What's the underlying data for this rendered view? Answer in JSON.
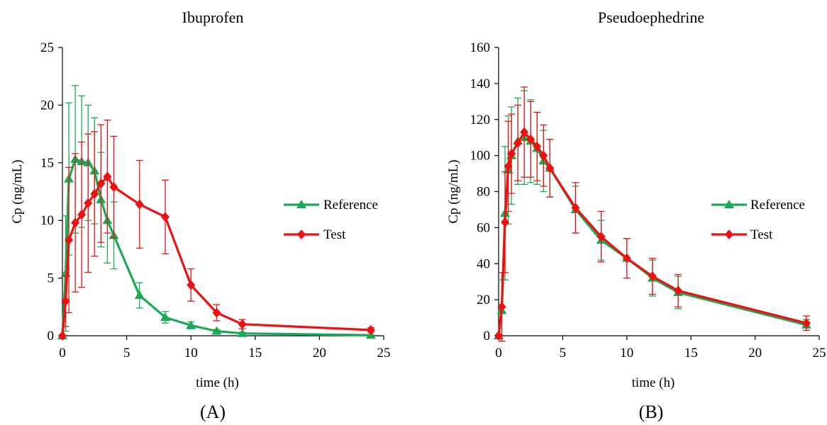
{
  "colors": {
    "reference": "#1aaa55",
    "test": "#ee1111",
    "axis": "#000000"
  },
  "chart_data": [
    {
      "type": "line",
      "title": "Ibuprofen",
      "xlabel": "time (h)",
      "ylabel": "Cp (ng/mL)",
      "panel_label": "(A)",
      "xlim": [
        0,
        25
      ],
      "ylim": [
        0,
        25
      ],
      "xticks": [
        0,
        5,
        10,
        15,
        20,
        25
      ],
      "yticks": [
        0,
        5,
        10,
        15,
        20,
        25
      ],
      "grid": false,
      "legend": "right",
      "series": [
        {
          "name": "Reference",
          "marker": "triangle",
          "color": "#1aaa55",
          "x": [
            0,
            0.25,
            0.5,
            1,
            1.5,
            2,
            2.5,
            3,
            3.5,
            4,
            6,
            8,
            10,
            12,
            14,
            24
          ],
          "y": [
            0,
            5.4,
            13.6,
            15.3,
            15.1,
            15.0,
            14.3,
            11.8,
            10.0,
            8.7,
            3.5,
            1.6,
            0.9,
            0.4,
            0.2,
            0.05
          ],
          "err": [
            0,
            5.0,
            6.6,
            6.4,
            5.7,
            5.0,
            4.6,
            4.1,
            3.7,
            2.9,
            1.1,
            0.5,
            0.3,
            0.15,
            0.1,
            0.02
          ]
        },
        {
          "name": "Test",
          "marker": "diamond",
          "color": "#ee1111",
          "x": [
            0,
            0.25,
            0.5,
            1,
            1.5,
            2,
            2.5,
            3,
            3.5,
            4,
            6,
            8,
            10,
            12,
            14,
            24
          ],
          "y": [
            0,
            3.0,
            8.3,
            9.8,
            10.5,
            11.5,
            12.3,
            13.2,
            13.8,
            12.9,
            11.4,
            10.3,
            4.4,
            2.0,
            1.0,
            0.5
          ],
          "err": [
            0,
            2.2,
            6.3,
            6.0,
            6.3,
            6.0,
            5.4,
            5.1,
            4.9,
            4.4,
            3.8,
            3.2,
            1.4,
            0.7,
            0.4,
            0.2
          ]
        }
      ]
    },
    {
      "type": "line",
      "title": "Pseudoephedrine",
      "xlabel": "time (h)",
      "ylabel": "Cp (ng/mL)",
      "panel_label": "(B)",
      "xlim": [
        0,
        25
      ],
      "ylim": [
        0,
        160
      ],
      "xticks": [
        0,
        5,
        10,
        15,
        20,
        25
      ],
      "yticks": [
        0,
        20,
        40,
        60,
        80,
        100,
        120,
        140,
        160
      ],
      "grid": false,
      "legend": "right",
      "series": [
        {
          "name": "Reference",
          "marker": "triangle",
          "color": "#1aaa55",
          "x": [
            0,
            0.25,
            0.5,
            0.75,
            1,
            1.5,
            2,
            2.5,
            3,
            3.5,
            4,
            6,
            8,
            10,
            12,
            14,
            24
          ],
          "y": [
            0,
            14,
            68,
            92,
            100,
            108,
            110,
            108,
            104,
            97,
            93,
            70,
            53,
            43,
            32,
            24,
            6
          ],
          "err": [
            0,
            17,
            37,
            30,
            27,
            24,
            26,
            23,
            20,
            17,
            16,
            13,
            11,
            11,
            10,
            9,
            3
          ]
        },
        {
          "name": "Test",
          "marker": "diamond",
          "color": "#ee1111",
          "x": [
            0,
            0.25,
            0.5,
            0.75,
            1,
            1.5,
            2,
            2.5,
            3,
            3.5,
            4,
            6,
            8,
            10,
            12,
            14,
            24
          ],
          "y": [
            0,
            16,
            63,
            94,
            101,
            107,
            113,
            109,
            105,
            100,
            93,
            71,
            55,
            43,
            33,
            25,
            7
          ],
          "err": [
            0,
            19,
            28,
            25,
            22,
            21,
            25,
            21,
            19,
            17,
            16,
            14,
            14,
            11,
            10,
            9,
            4
          ]
        }
      ]
    }
  ]
}
